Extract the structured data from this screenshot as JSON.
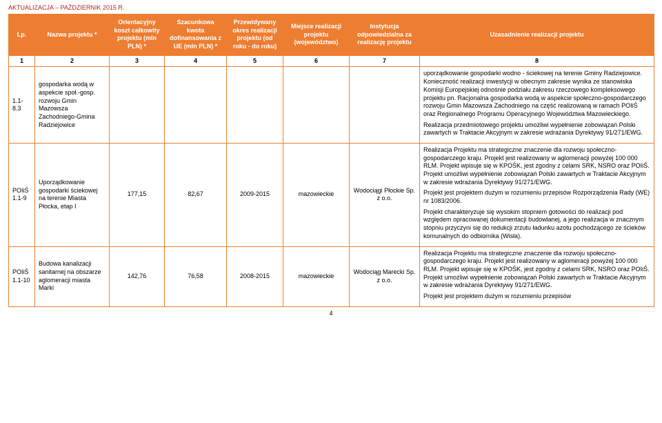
{
  "header_note": "AKTUALIZACJA – PAŹDZIERNIK 2015 R.",
  "columns": [
    "Lp.",
    "Nazwa projektu *",
    "Orientacyjny koszt całkowity projektu (mln PLN) *",
    "Szacunkowa kwota dofinansowania z UE (mln PLN) *",
    "Przewidywany okres realizacji projektu (od roku - do roku)",
    "Miejsce realizacji projektu (województwo)",
    "Instytucja odpowiedzialna za realizację projektu",
    "Uzasadnienie realizacji projektu"
  ],
  "numrow": [
    "1",
    "2",
    "3",
    "4",
    "5",
    "6",
    "7",
    "8"
  ],
  "rows": [
    {
      "lp": "1.1-8.3",
      "name": "gospodarka wodą w aspekcie społ.-gosp. rozwoju Gmin Mazowsza Zachodniego-Gmina Radziejowice",
      "cost": "",
      "fund": "",
      "period": "",
      "place": "",
      "inst": "",
      "just": "uporządkowanie gospodarki wodno - ściekowej na terenie Gminy Radziejowice. Konieczność realizacji inwestycji w obecnym zakresie wynika ze stanowiska Komisji Europejskiej odnośnie podziału zakresu rzeczowego kompleksowego projektu pn. Racjonalna gospodarka wodą w aspekcie społeczno-gospodarczego rozwoju Gmin Mazowsza Zachodniego na część realizowaną w ramach POIiŚ oraz Regionalnego Programu Operacyjnego Województwa Mazowieckiego.\nRealizacja przedmiotowego projektu umożliwi wypełnienie zobowiązań Polski zawartych w Traktacie Akcyjnym w zakresie wdrażania Dyrektywy 91/271/EWG."
    },
    {
      "lp": "POIiŚ 1.1-9",
      "name": "Uporządkowanie gospodarki ściekowej na terenie Miasta Płocka, etap I",
      "cost": "177,15",
      "fund": "82,67",
      "period": "2009-2015",
      "place": "mazowieckie",
      "inst": "Wodociągi Płockie Sp. z o.o.",
      "just": "Realizacja Projektu ma strategiczne znaczenie dla rozwoju społeczno-gospodarczego kraju. Projekt jest realizowany w aglomeracji powyżej 100 000 RLM. Projekt wpisuje się w KPOŚK, jest zgodny z celami SRK, NSRO oraz POIiŚ. Projekt umożliwi wypełnienie zobowiązań Polski zawartych w Traktacie Akcyjnym w zakresie wdrażania Dyrektywy 91/271/EWG.\nProjekt jest projektem dużym w rozumieniu przepisów Rozporządzenia Rady (WE) nr 1083/2006.\nProjekt charakteryzuje się wysokim stopniem gotowości do realizacji pod względem opracowanej dokumentacji budowlanej, a jego realizacja w znacznym stopniu przyczyni się do redukcji zrzutu ładunku azotu pochodzącego ze ścieków komunalnych do odbiornika (Wisła)."
    },
    {
      "lp": "POIiŚ 1.1-10",
      "name": "Budowa kanalizacji sanitarnej na obszarze aglomeracji miasta Marki",
      "cost": "142,76",
      "fund": "76,58",
      "period": "2008-2015",
      "place": "mazowieckie",
      "inst": "Wodociąg Marecki Sp. z o.o.",
      "just": "Realizacja Projektu ma strategiczne znaczenie dla rozwoju społeczno-gospodarczego kraju. Projekt jest realizowany w aglomeracji powyżej 100 000 RLM. Projekt wpisuje się w KPOŚK, jest zgodny z celami SRK, NSRO oraz POIiŚ. Projekt umożliwi wypełnienie zobowiązań Polski zawartych w Traktacie Akcyjnym w zakresie wdrażania Dyrektywy 91/271/EWG.\nProjekt jest projektem dużym w rozumieniu przepisów"
    }
  ],
  "page_number": "4",
  "colors": {
    "header_bg": "#ed7d31",
    "header_text": "#ffffff",
    "border": "#ed7d31",
    "note": "#b22222"
  }
}
